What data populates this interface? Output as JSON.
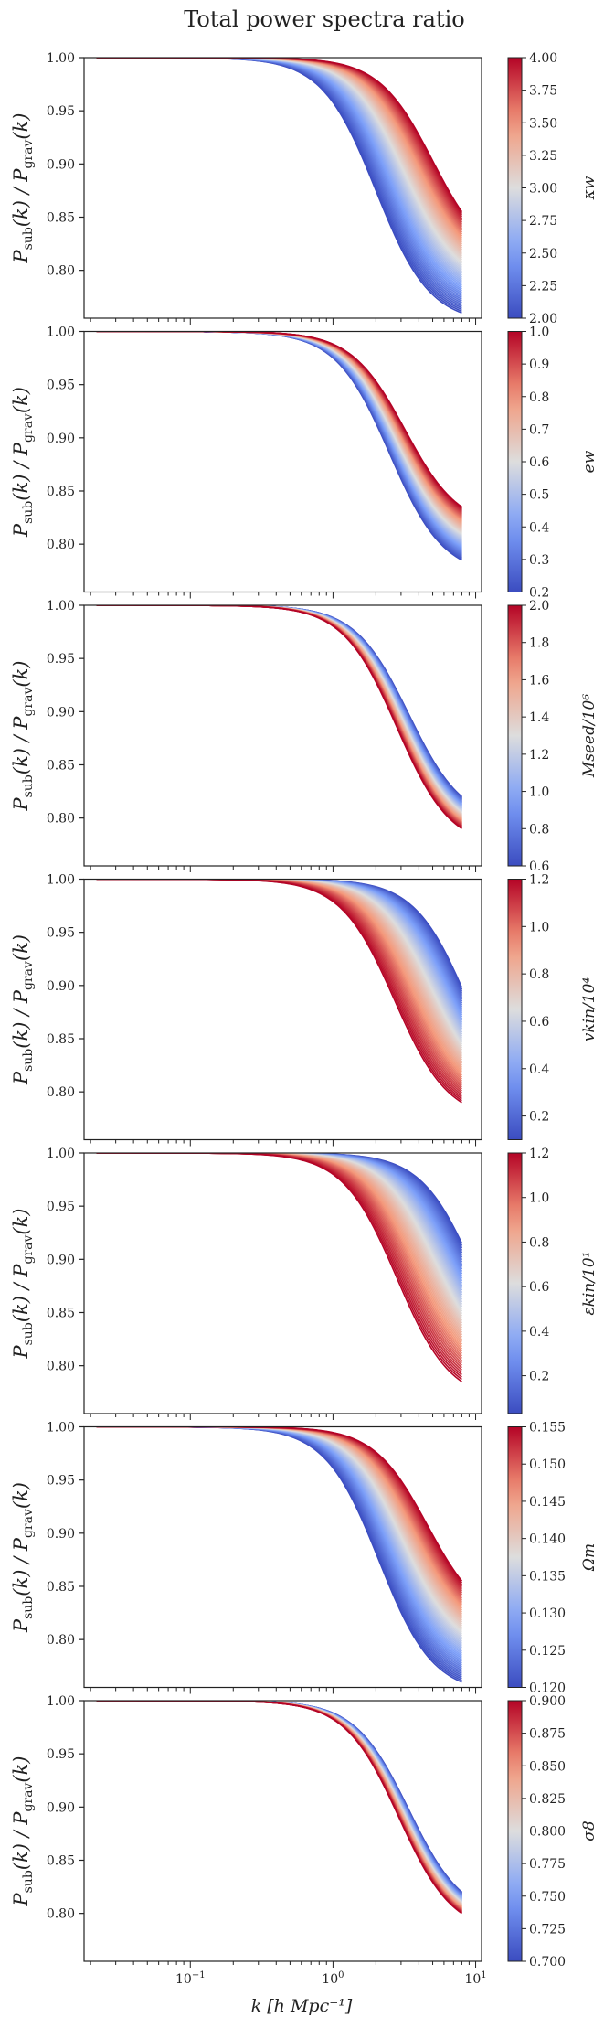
{
  "chart_data": {
    "type": "line",
    "title": "Total power spectra ratio",
    "xlabel": "k [h Mpc⁻¹]",
    "xscale": "log",
    "xlim": [
      0.018,
      11
    ],
    "xticks": [
      {
        "value": 0.1,
        "base": "10",
        "exp": "−1"
      },
      {
        "value": 1,
        "base": "10",
        "exp": "0"
      },
      {
        "value": 10,
        "base": "10",
        "exp": "1"
      }
    ],
    "ylabel": "P_sub(k) / P_grav(k)",
    "ylim": [
      0.755,
      1.0
    ],
    "yticks": [
      "1.00",
      "0.95",
      "0.90",
      "0.85",
      "0.80"
    ],
    "yticks_values": [
      1.0,
      0.95,
      0.9,
      0.85,
      0.8
    ],
    "colormap": {
      "name": "coolwarm",
      "low": "#3b4cc0",
      "mid": "#dddddd",
      "high": "#b40426"
    },
    "panels": [
      {
        "param": "κ_w",
        "colorbar_label": "κw",
        "cb_range": [
          2.0,
          4.0
        ],
        "cb_ticks": [
          "2.00",
          "2.25",
          "2.50",
          "2.75",
          "3.00",
          "3.25",
          "3.50",
          "3.75",
          "4.00"
        ],
        "cb_tick_values": [
          2.0,
          2.25,
          2.5,
          2.75,
          3.0,
          3.25,
          3.5,
          3.75,
          4.0
        ],
        "curves_low": {
          "end": 0.76,
          "k_half": 2.0
        },
        "curves_high": {
          "end": 0.855,
          "k_half": 5.0
        }
      },
      {
        "param": "e_w",
        "colorbar_label": "ew",
        "cb_range": [
          0.2,
          1.0
        ],
        "cb_ticks": [
          "0.2",
          "0.3",
          "0.4",
          "0.5",
          "0.6",
          "0.7",
          "0.8",
          "0.9",
          "1.0"
        ],
        "cb_tick_values": [
          0.2,
          0.3,
          0.4,
          0.5,
          0.6,
          0.7,
          0.8,
          0.9,
          1.0
        ],
        "curves_low": {
          "end": 0.785,
          "k_half": 2.5
        },
        "curves_high": {
          "end": 0.835,
          "k_half": 3.2
        }
      },
      {
        "param": "M_seed/10^6",
        "colorbar_label": "Mseed/10⁶",
        "cb_range": [
          0.6,
          2.0
        ],
        "cb_ticks": [
          "0.6",
          "0.8",
          "1.0",
          "1.2",
          "1.4",
          "1.6",
          "1.8",
          "2.0"
        ],
        "cb_tick_values": [
          0.6,
          0.8,
          1.0,
          1.2,
          1.4,
          1.6,
          1.8,
          2.0
        ],
        "curves_low": {
          "end": 0.82,
          "k_half": 3.4
        },
        "curves_high": {
          "end": 0.79,
          "k_half": 2.8
        }
      },
      {
        "param": "v_kin/10^4",
        "colorbar_label": "vkin/10⁴",
        "cb_range": [
          0.1,
          1.2
        ],
        "cb_ticks": [
          "0.2",
          "0.4",
          "0.6",
          "0.8",
          "1.0",
          "1.2"
        ],
        "cb_tick_values": [
          0.2,
          0.4,
          0.6,
          0.8,
          1.0,
          1.2
        ],
        "curves_low": {
          "end": 0.898,
          "k_half": 9.0
        },
        "curves_high": {
          "end": 0.79,
          "k_half": 2.7
        }
      },
      {
        "param": "ε_kin/10^1",
        "colorbar_label": "εkin/10¹",
        "cb_range": [
          0.03,
          1.2
        ],
        "cb_ticks": [
          "0.2",
          "0.4",
          "0.6",
          "0.8",
          "1.0",
          "1.2"
        ],
        "cb_tick_values": [
          0.2,
          0.4,
          0.6,
          0.8,
          1.0,
          1.2
        ],
        "curves_low": {
          "end": 0.915,
          "k_half": 10.0
        },
        "curves_high": {
          "end": 0.785,
          "k_half": 2.8
        }
      },
      {
        "param": "Ω_m",
        "colorbar_label": "Ωm",
        "cb_range": [
          0.12,
          0.155
        ],
        "cb_ticks": [
          "0.120",
          "0.125",
          "0.130",
          "0.135",
          "0.140",
          "0.145",
          "0.150",
          "0.155"
        ],
        "cb_tick_values": [
          0.12,
          0.125,
          0.13,
          0.135,
          0.14,
          0.145,
          0.15,
          0.155
        ],
        "curves_low": {
          "end": 0.76,
          "k_half": 2.1
        },
        "curves_high": {
          "end": 0.855,
          "k_half": 4.6
        }
      },
      {
        "param": "σ_8",
        "colorbar_label": "σ8",
        "cb_range": [
          0.7,
          0.9
        ],
        "cb_ticks": [
          "0.700",
          "0.725",
          "0.750",
          "0.775",
          "0.800",
          "0.825",
          "0.850",
          "0.875",
          "0.900"
        ],
        "cb_tick_values": [
          0.7,
          0.725,
          0.75,
          0.775,
          0.8,
          0.825,
          0.85,
          0.875,
          0.9
        ],
        "curves_low": {
          "end": 0.82,
          "k_half": 3.4
        },
        "curves_high": {
          "end": 0.8,
          "k_half": 2.9
        }
      }
    ]
  }
}
